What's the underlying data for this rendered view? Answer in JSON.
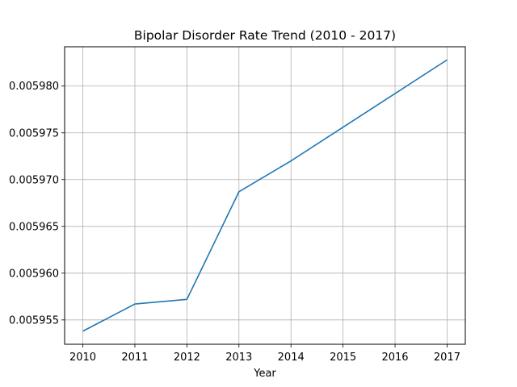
{
  "chart_data": {
    "type": "line",
    "title": "Bipolar Disorder Rate Trend (2010 - 2017)",
    "xlabel": "Year",
    "ylabel": "",
    "x": [
      2010,
      2011,
      2012,
      2013,
      2014,
      2015,
      2016,
      2017
    ],
    "series": [
      {
        "values": [
          0.0059538,
          0.0059567,
          0.0059572,
          0.0059687,
          0.005972,
          0.0059756,
          0.0059792,
          0.0059828
        ],
        "color": "#1f77b4"
      }
    ],
    "x_ticks": [
      "2010",
      "2011",
      "2012",
      "2013",
      "2014",
      "2015",
      "2016",
      "2017"
    ],
    "y_ticks": [
      0.005955,
      0.00596,
      0.005965,
      0.00597,
      0.005975,
      0.00598
    ],
    "y_tick_labels": [
      "0.005955",
      "0.005960",
      "0.005965",
      "0.005970",
      "0.005975",
      "0.005980"
    ],
    "xlim": [
      2009.65,
      2017.35
    ],
    "ylim": [
      0.0059524,
      0.0059842
    ],
    "grid": true,
    "legend": "none"
  }
}
